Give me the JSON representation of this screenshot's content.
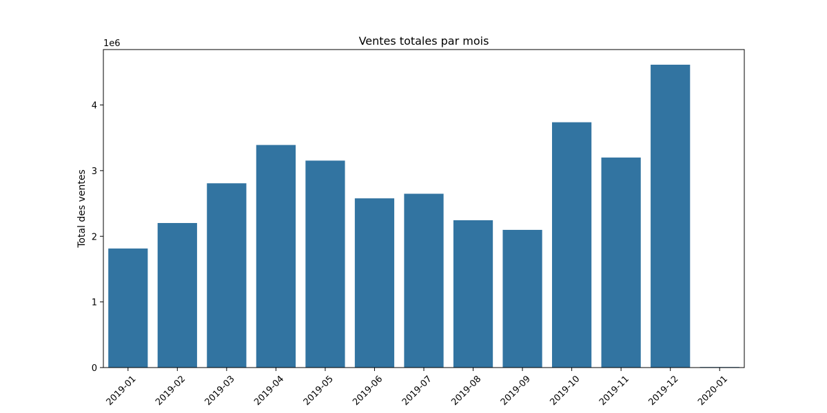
{
  "chart_data": {
    "type": "bar",
    "title": "Ventes totales par mois",
    "xlabel": "",
    "ylabel": "Total des ventes",
    "offset_label": "1e6",
    "categories": [
      "2019-01",
      "2019-02",
      "2019-03",
      "2019-04",
      "2019-05",
      "2019-06",
      "2019-07",
      "2019-08",
      "2019-09",
      "2019-10",
      "2019-11",
      "2019-12",
      "2020-01"
    ],
    "values": [
      1813586,
      2202022,
      2807100,
      3390670,
      3152607,
      2577802,
      2647776,
      2244468,
      2097560,
      3736727,
      3199603,
      4613443,
      8670
    ],
    "ylim": [
      0,
      4844115
    ],
    "yticks": [
      0,
      1000000,
      2000000,
      3000000,
      4000000
    ],
    "ytick_labels": [
      "0",
      "1",
      "2",
      "3",
      "4"
    ],
    "bar_color": "#3274a1",
    "grid": false,
    "legend": "none"
  }
}
